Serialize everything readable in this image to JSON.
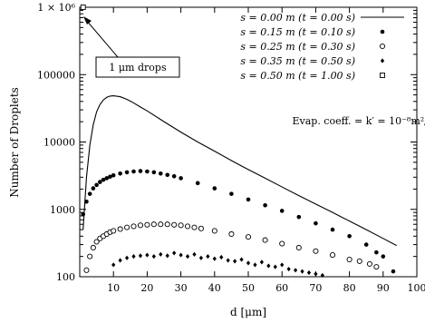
{
  "chart_data": {
    "type": "scatter",
    "title": "",
    "xlabel": "d [μm]",
    "ylabel": "Number of Droplets",
    "x_scale": "linear",
    "y_scale": "log",
    "xlim": [
      0,
      100
    ],
    "ylim": [
      100,
      1000000
    ],
    "x_ticks": [
      10,
      20,
      30,
      40,
      50,
      60,
      70,
      80,
      90,
      100
    ],
    "x_tick_labels": [
      "10",
      "20",
      "30",
      "40",
      "50",
      "60",
      "70",
      "80",
      "90",
      "100"
    ],
    "y_ticks": [
      100,
      1000,
      10000,
      100000,
      1000000
    ],
    "y_tick_labels": [
      "100",
      "1000",
      "10000",
      "100000",
      "1 × 10⁶"
    ],
    "grid": false,
    "legend_position": "top-right",
    "annotations": [
      {
        "text": "1 μm drops",
        "arrow_to": [
          1,
          900000
        ],
        "boxed": true
      },
      {
        "text": "Evap. coeff. = k′ = 10⁻⁸m²/s"
      }
    ],
    "series": [
      {
        "name": "s = 0.00 m (t = 0.00 s)",
        "style": "line",
        "x": [
          1,
          2,
          3,
          4,
          5,
          6,
          7,
          8,
          9,
          10,
          12,
          14,
          16,
          18,
          20,
          25,
          30,
          35,
          40,
          45,
          50,
          55,
          60,
          65,
          70,
          75,
          80,
          85,
          90,
          94
        ],
        "y": [
          500,
          3000,
          9000,
          18000,
          28000,
          36000,
          42000,
          46000,
          48000,
          48500,
          47000,
          43000,
          38000,
          33000,
          29000,
          20000,
          14000,
          10000,
          7300,
          5300,
          3900,
          2900,
          2150,
          1600,
          1200,
          900,
          670,
          500,
          370,
          290
        ]
      },
      {
        "name": "s = 0.15 m (t = 0.10 s)",
        "style": "filled-circle",
        "x": [
          1,
          2,
          3,
          4,
          5,
          6,
          7,
          8,
          9,
          10,
          12,
          14,
          16,
          18,
          20,
          22,
          24,
          26,
          28,
          30,
          35,
          40,
          45,
          50,
          55,
          60,
          65,
          70,
          75,
          80,
          85,
          88,
          90,
          93
        ],
        "y": [
          850,
          1300,
          1700,
          2050,
          2300,
          2550,
          2750,
          2900,
          3050,
          3200,
          3400,
          3550,
          3650,
          3700,
          3650,
          3550,
          3400,
          3250,
          3100,
          2900,
          2450,
          2050,
          1700,
          1400,
          1150,
          950,
          770,
          620,
          500,
          400,
          300,
          230,
          200,
          120
        ]
      },
      {
        "name": "s = 0.25 m (t = 0.30 s)",
        "style": "open-circle",
        "x": [
          2,
          3,
          4,
          5,
          6,
          7,
          8,
          9,
          10,
          12,
          14,
          16,
          18,
          20,
          22,
          24,
          26,
          28,
          30,
          32,
          34,
          36,
          40,
          45,
          50,
          55,
          60,
          65,
          70,
          75,
          80,
          83,
          86,
          88
        ],
        "y": [
          125,
          200,
          270,
          330,
          370,
          400,
          430,
          460,
          480,
          510,
          540,
          560,
          580,
          590,
          600,
          600,
          600,
          590,
          580,
          560,
          540,
          520,
          480,
          430,
          390,
          350,
          310,
          270,
          240,
          210,
          180,
          170,
          155,
          140
        ]
      },
      {
        "name": "s = 0.35 m (t = 0.50 s)",
        "style": "diamond",
        "x": [
          10,
          12,
          14,
          16,
          18,
          20,
          22,
          24,
          26,
          28,
          30,
          32,
          34,
          36,
          38,
          40,
          42,
          44,
          46,
          48,
          50,
          52,
          54,
          56,
          58,
          60,
          62,
          64,
          66,
          68,
          70,
          72
        ],
        "y": [
          150,
          175,
          190,
          200,
          205,
          210,
          200,
          215,
          205,
          225,
          210,
          200,
          215,
          190,
          200,
          185,
          195,
          175,
          170,
          180,
          160,
          150,
          165,
          145,
          140,
          150,
          130,
          125,
          120,
          115,
          110,
          105
        ]
      },
      {
        "name": "s = 0.50 m (t = 1.00 s)",
        "style": "open-square",
        "x": [
          1
        ],
        "y": [
          1000000
        ]
      }
    ]
  }
}
